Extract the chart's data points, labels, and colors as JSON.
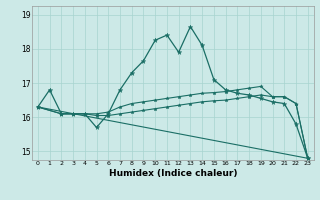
{
  "xlabel": "Humidex (Indice chaleur)",
  "bg_color": "#cce9e7",
  "grid_color": "#a8d4d0",
  "line_color": "#1a6e65",
  "xlim": [
    -0.5,
    23.5
  ],
  "ylim": [
    14.75,
    19.25
  ],
  "yticks": [
    15,
    16,
    17,
    18,
    19
  ],
  "xticks": [
    0,
    1,
    2,
    3,
    4,
    5,
    6,
    7,
    8,
    9,
    10,
    11,
    12,
    13,
    14,
    15,
    16,
    17,
    18,
    19,
    20,
    21,
    22,
    23
  ],
  "line1_marked": {
    "x": [
      0,
      1,
      2,
      3,
      4,
      5,
      6,
      7,
      8,
      9,
      10,
      11,
      12,
      13,
      14,
      15,
      16,
      17,
      18,
      19,
      20,
      21,
      22,
      23
    ],
    "y": [
      16.3,
      16.8,
      16.1,
      16.1,
      16.1,
      15.7,
      16.1,
      16.8,
      17.3,
      17.65,
      18.25,
      18.4,
      17.9,
      18.65,
      18.1,
      17.1,
      16.8,
      16.7,
      16.65,
      16.55,
      16.45,
      16.4,
      15.8,
      14.8
    ]
  },
  "line2_rising": {
    "x": [
      0,
      2,
      3,
      4,
      5,
      6,
      7,
      8,
      9,
      10,
      11,
      12,
      13,
      14,
      15,
      16,
      17,
      18,
      19,
      20,
      21,
      22,
      23
    ],
    "y": [
      16.3,
      16.1,
      16.1,
      16.1,
      16.1,
      16.15,
      16.3,
      16.4,
      16.45,
      16.5,
      16.55,
      16.6,
      16.65,
      16.7,
      16.72,
      16.75,
      16.8,
      16.85,
      16.9,
      16.6,
      16.6,
      16.4,
      14.8
    ]
  },
  "line3_flat": {
    "x": [
      0,
      2,
      3,
      4,
      5,
      6,
      7,
      8,
      9,
      10,
      11,
      12,
      13,
      14,
      15,
      16,
      17,
      18,
      19,
      20,
      21,
      22,
      23
    ],
    "y": [
      16.3,
      16.1,
      16.1,
      16.1,
      16.05,
      16.05,
      16.1,
      16.15,
      16.2,
      16.25,
      16.3,
      16.35,
      16.4,
      16.45,
      16.48,
      16.5,
      16.55,
      16.6,
      16.65,
      16.6,
      16.6,
      16.4,
      14.8
    ]
  },
  "line4_diagonal": {
    "x": [
      0,
      23
    ],
    "y": [
      16.3,
      14.8
    ]
  }
}
